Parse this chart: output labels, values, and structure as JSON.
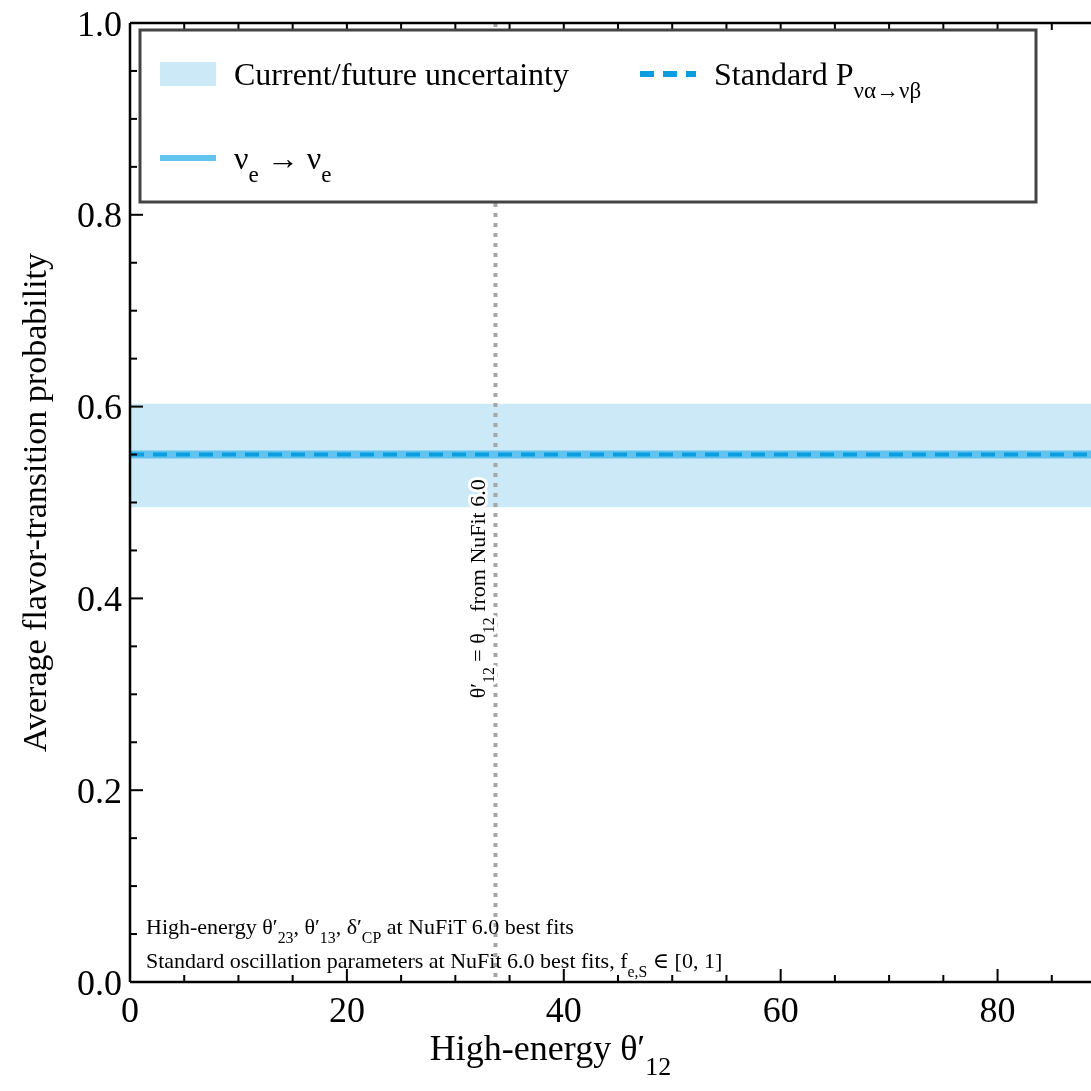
{
  "chart_data": {
    "type": "line",
    "xlabel": "High-energy θ′$_{12}$",
    "ylabel": "Average flavor-transition probability",
    "xlim": [
      0,
      90
    ],
    "xticks": [
      0,
      {
        "value": 5,
        "label": null
      },
      {
        "value": 10,
        "label": null
      },
      {
        "value": 15,
        "label": null
      },
      20,
      {
        "value": 25,
        "label": null
      },
      {
        "value": 30,
        "label": null
      },
      {
        "value": 35,
        "label": null
      },
      40,
      {
        "value": 45,
        "label": null
      },
      {
        "value": 50,
        "label": null
      },
      {
        "value": 55,
        "label": null
      },
      60,
      {
        "value": 65,
        "label": null
      },
      {
        "value": 70,
        "label": null
      },
      {
        "value": 75,
        "label": null
      },
      80,
      {
        "value": 85,
        "label": null
      }
    ],
    "ylim": [
      0,
      1
    ],
    "yticks": [
      {
        "value": 0,
        "label": "0.0"
      },
      {
        "value": 0.05,
        "label": null
      },
      {
        "value": 0.1,
        "label": null
      },
      {
        "value": 0.15,
        "label": null
      },
      0.2,
      {
        "value": 0.25,
        "label": null
      },
      {
        "value": 0.3,
        "label": null
      },
      {
        "value": 0.35,
        "label": null
      },
      0.4,
      {
        "value": 0.45,
        "label": null
      },
      {
        "value": 0.5,
        "label": null
      },
      {
        "value": 0.55,
        "label": null
      },
      0.6,
      {
        "value": 0.65,
        "label": null
      },
      {
        "value": 0.7,
        "label": null
      },
      {
        "value": 0.75,
        "label": null
      },
      0.8,
      {
        "value": 0.85,
        "label": null
      },
      {
        "value": 0.9,
        "label": null
      },
      {
        "value": 0.95,
        "label": null
      },
      {
        "value": 1,
        "label": "1.0"
      }
    ],
    "x": [
      0,
      90
    ],
    "series": [
      {
        "name": "Standard P$_{να→νβ}$",
        "color": "#0a9ee0",
        "values": [
          0.55,
          0.55
        ],
        "line_style": "dashed"
      },
      {
        "name": "ν$_{e}$ → ν$_{e}$",
        "color": "#62c4ee",
        "values": [
          0.55,
          0.55
        ],
        "line_style": "solid"
      }
    ],
    "bands": [
      {
        "axis": "y",
        "from": 0.495,
        "to": 0.603,
        "label": "Current/future uncertainty",
        "color": "#cbe9f6"
      }
    ],
    "ref_lines": [
      {
        "axis": "x",
        "value": 33.7,
        "label": "θ′$_{12}$ = θ$_{12}$ from NuFit 6.0",
        "color": "#a6a6a6",
        "line_style": "dotted"
      }
    ],
    "annotations": [
      "High-energy θ′$_{23}$, θ′$_{13}$, δ′$_{CP}$ at NuFiT 6.0 best fits",
      "Standard oscillation parameters at NuFit 6.0 best fits, f$_{e,S}$ ∈ [0, 1]"
    ],
    "grid": false,
    "legend": "top left"
  }
}
